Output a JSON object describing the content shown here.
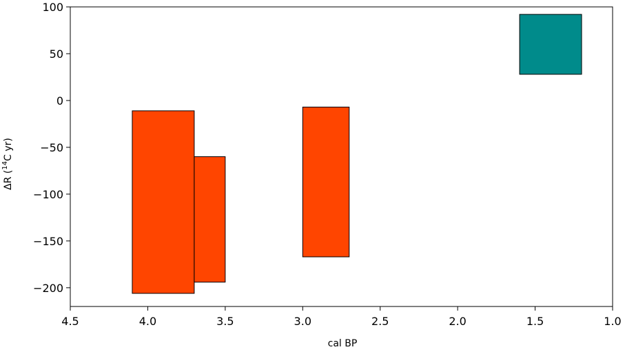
{
  "chart_data": {
    "type": "bar",
    "xlabel": "cal BP",
    "ylabel_prefix": "ΔR (",
    "ylabel_sup": "14",
    "ylabel_suffix": "C yr)",
    "xlim": [
      4.5,
      1.0
    ],
    "ylim": [
      -220,
      100
    ],
    "x_ticks": [
      4.5,
      4.0,
      3.5,
      3.0,
      2.5,
      2.0,
      1.5,
      1.0
    ],
    "x_tick_labels": [
      "4.5",
      "4.0",
      "3.5",
      "3.0",
      "2.5",
      "2.0",
      "1.5",
      "1.0"
    ],
    "y_ticks": [
      100,
      50,
      0,
      -50,
      -100,
      -150,
      -200
    ],
    "y_tick_labels": [
      "100",
      "50",
      "0",
      "−50",
      "−100",
      "−150",
      "−200"
    ],
    "grid": false,
    "boxes": [
      {
        "x_start": 4.1,
        "x_end": 3.7,
        "y_low": -206,
        "y_high": -11,
        "color": "#ff4500"
      },
      {
        "x_start": 3.7,
        "x_end": 3.5,
        "y_low": -194,
        "y_high": -60,
        "color": "#ff4500"
      },
      {
        "x_start": 3.0,
        "x_end": 2.7,
        "y_low": -167,
        "y_high": -7,
        "color": "#ff4500"
      },
      {
        "x_start": 1.6,
        "x_end": 1.2,
        "y_low": 28,
        "y_high": 92,
        "color": "#008b8b"
      }
    ]
  }
}
